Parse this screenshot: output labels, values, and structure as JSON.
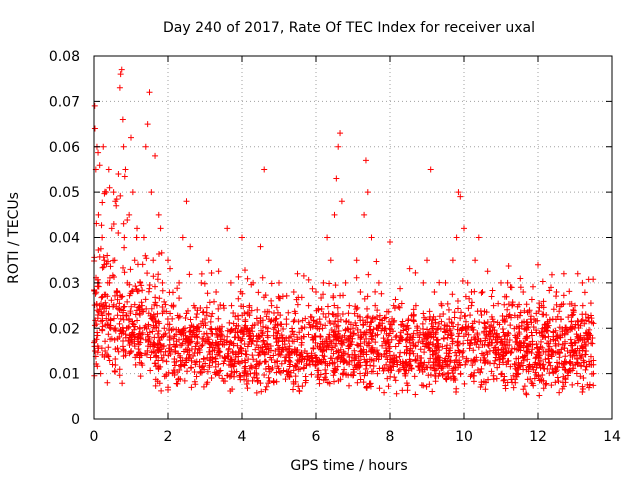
{
  "chart_data": {
    "type": "scatter",
    "title": "Day 240 of 2017, Rate Of TEC Index for receiver uxal",
    "xlabel": "GPS time / hours",
    "ylabel": "ROTI / TECUs",
    "xlim": [
      0,
      14
    ],
    "ylim": [
      0,
      0.08
    ],
    "xticks": [
      "0",
      "2",
      "4",
      "6",
      "8",
      "10",
      "12",
      "14"
    ],
    "yticks": [
      "0",
      "0.01",
      "0.02",
      "0.03",
      "0.04",
      "0.05",
      "0.06",
      "0.07",
      "0.08"
    ],
    "grid": true,
    "marker": "+",
    "series_color": "#ff0000",
    "series": [
      {
        "name": "ROTI",
        "x": [
          0.02,
          0.05,
          0.08,
          0.1,
          0.12,
          0.15,
          0.18,
          0.22,
          0.25,
          0.28,
          0.3,
          0.33,
          0.36,
          0.4,
          0.42,
          0.45,
          0.48,
          0.5,
          0.53,
          0.56,
          0.6,
          0.63,
          0.66,
          0.7,
          0.72,
          0.75,
          0.78,
          0.8,
          0.82,
          0.85,
          0.88,
          0.9,
          0.95,
          1.0,
          1.05,
          1.1,
          1.15,
          1.2,
          1.25,
          1.3,
          1.35,
          1.4,
          1.45,
          1.5,
          1.55,
          1.6,
          1.65,
          1.7,
          1.75,
          1.8,
          1.85,
          1.9,
          2.0,
          2.1,
          2.2,
          2.3,
          2.4,
          2.5,
          2.6,
          2.7,
          2.8,
          2.9,
          3.0,
          3.1,
          3.2,
          3.3,
          3.4,
          3.5,
          3.6,
          3.7,
          3.8,
          3.9,
          4.0,
          4.1,
          4.2,
          4.3,
          4.4,
          4.5,
          4.6,
          4.7,
          4.8,
          4.9,
          5.0,
          5.1,
          5.2,
          5.3,
          5.4,
          5.5,
          5.6,
          5.7,
          5.8,
          5.9,
          6.0,
          6.1,
          6.2,
          6.3,
          6.4,
          6.5,
          6.55,
          6.6,
          6.65,
          6.7,
          6.8,
          6.9,
          7.0,
          7.1,
          7.2,
          7.3,
          7.35,
          7.4,
          7.5,
          7.6,
          7.7,
          7.8,
          7.9,
          8.0,
          8.1,
          8.2,
          8.3,
          8.4,
          8.5,
          8.6,
          8.7,
          8.8,
          8.9,
          9.0,
          9.1,
          9.2,
          9.3,
          9.4,
          9.5,
          9.6,
          9.7,
          9.8,
          9.85,
          9.9,
          10.0,
          10.1,
          10.2,
          10.3,
          10.4,
          10.5,
          10.6,
          10.7,
          10.8,
          10.9,
          11.0,
          11.1,
          11.2,
          11.3,
          11.4,
          11.5,
          11.6,
          11.7,
          11.8,
          11.9,
          12.0,
          12.1,
          12.2,
          12.3,
          12.4,
          12.5,
          12.6,
          12.7,
          12.8,
          12.9,
          13.0,
          13.1,
          13.2,
          13.3,
          13.4,
          13.5
        ],
        "y": [
          0.069,
          0.055,
          0.06,
          0.03,
          0.045,
          0.025,
          0.01,
          0.04,
          0.06,
          0.035,
          0.015,
          0.05,
          0.008,
          0.055,
          0.03,
          0.02,
          0.042,
          0.012,
          0.05,
          0.035,
          0.047,
          0.028,
          0.054,
          0.073,
          0.076,
          0.077,
          0.066,
          0.06,
          0.04,
          0.055,
          0.02,
          0.03,
          0.045,
          0.062,
          0.05,
          0.035,
          0.04,
          0.018,
          0.03,
          0.025,
          0.04,
          0.06,
          0.065,
          0.072,
          0.05,
          0.035,
          0.058,
          0.025,
          0.045,
          0.042,
          0.03,
          0.02,
          0.035,
          0.025,
          0.015,
          0.03,
          0.04,
          0.048,
          0.038,
          0.025,
          0.018,
          0.03,
          0.022,
          0.035,
          0.015,
          0.028,
          0.02,
          0.025,
          0.042,
          0.03,
          0.018,
          0.022,
          0.04,
          0.015,
          0.025,
          0.03,
          0.012,
          0.038,
          0.055,
          0.02,
          0.025,
          0.015,
          0.03,
          0.018,
          0.022,
          0.012,
          0.028,
          0.032,
          0.02,
          0.015,
          0.025,
          0.018,
          0.028,
          0.022,
          0.03,
          0.04,
          0.035,
          0.045,
          0.053,
          0.06,
          0.063,
          0.048,
          0.03,
          0.025,
          0.02,
          0.035,
          0.028,
          0.045,
          0.057,
          0.05,
          0.04,
          0.025,
          0.03,
          0.02,
          0.015,
          0.039,
          0.025,
          0.012,
          0.018,
          0.01,
          0.022,
          0.015,
          0.025,
          0.018,
          0.03,
          0.035,
          0.055,
          0.028,
          0.02,
          0.025,
          0.03,
          0.022,
          0.035,
          0.04,
          0.05,
          0.049,
          0.042,
          0.03,
          0.025,
          0.035,
          0.04,
          0.028,
          0.02,
          0.015,
          0.025,
          0.018,
          0.03,
          0.022,
          0.015,
          0.025,
          0.018,
          0.02,
          0.028,
          0.015,
          0.022,
          0.012,
          0.034,
          0.025,
          0.018,
          0.015,
          0.022,
          0.028,
          0.018,
          0.032,
          0.015,
          0.02,
          0.025,
          0.018,
          0.03,
          0.015,
          0.012,
          0.01
        ]
      }
    ],
    "background_band": {
      "description": "dense cloud of points",
      "x_range": [
        0,
        13.5
      ],
      "y_low": 0.005,
      "y_high": 0.022
    }
  }
}
